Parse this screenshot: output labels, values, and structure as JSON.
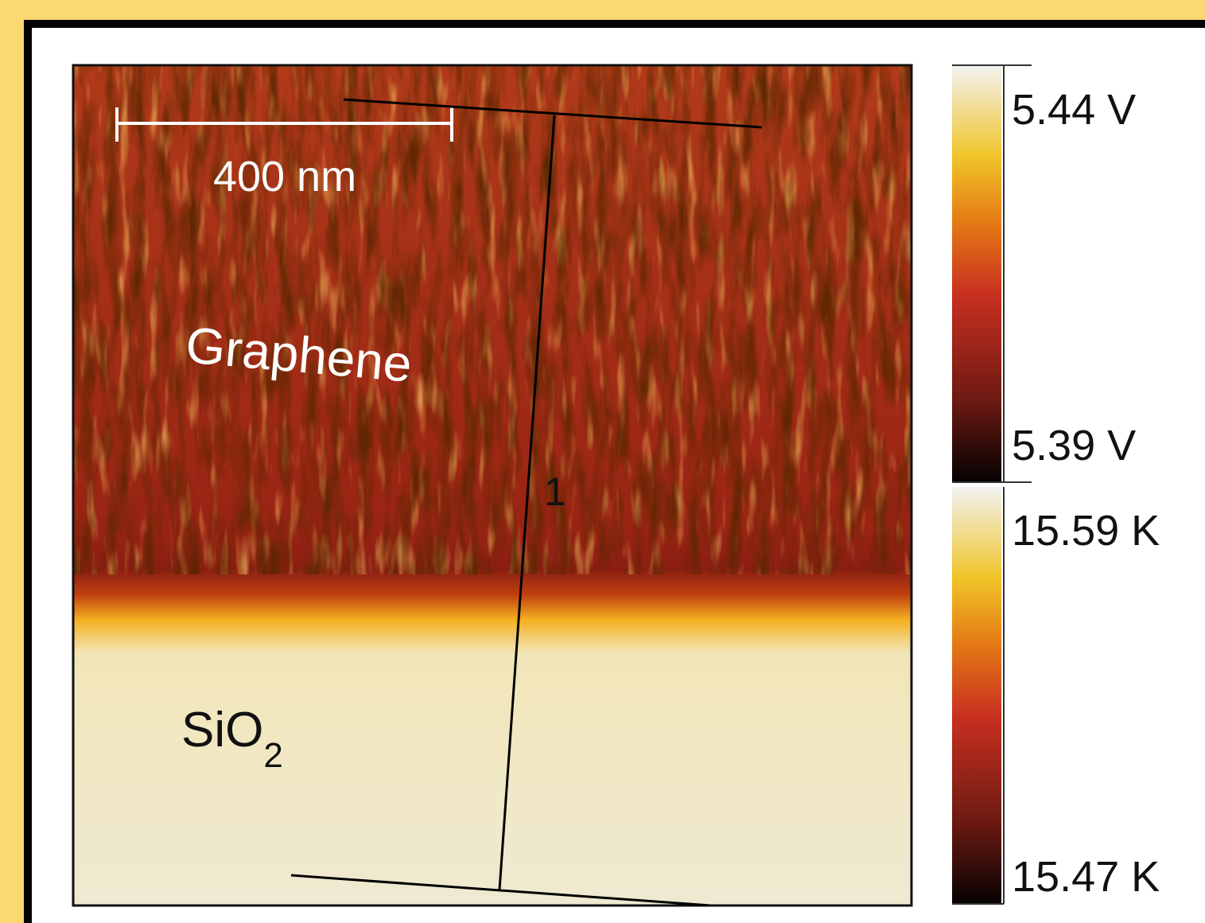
{
  "image": {
    "scale_bar_label": "400 nm",
    "region_labels": {
      "graphene": "Graphene",
      "substrate": "SiO",
      "substrate_subscript": "2"
    },
    "line_label": "1"
  },
  "colorbars": [
    {
      "max_label": "5.44 V",
      "min_label": "5.39 V"
    },
    {
      "max_label": "15.59 K",
      "min_label": "15.47 K"
    }
  ]
}
